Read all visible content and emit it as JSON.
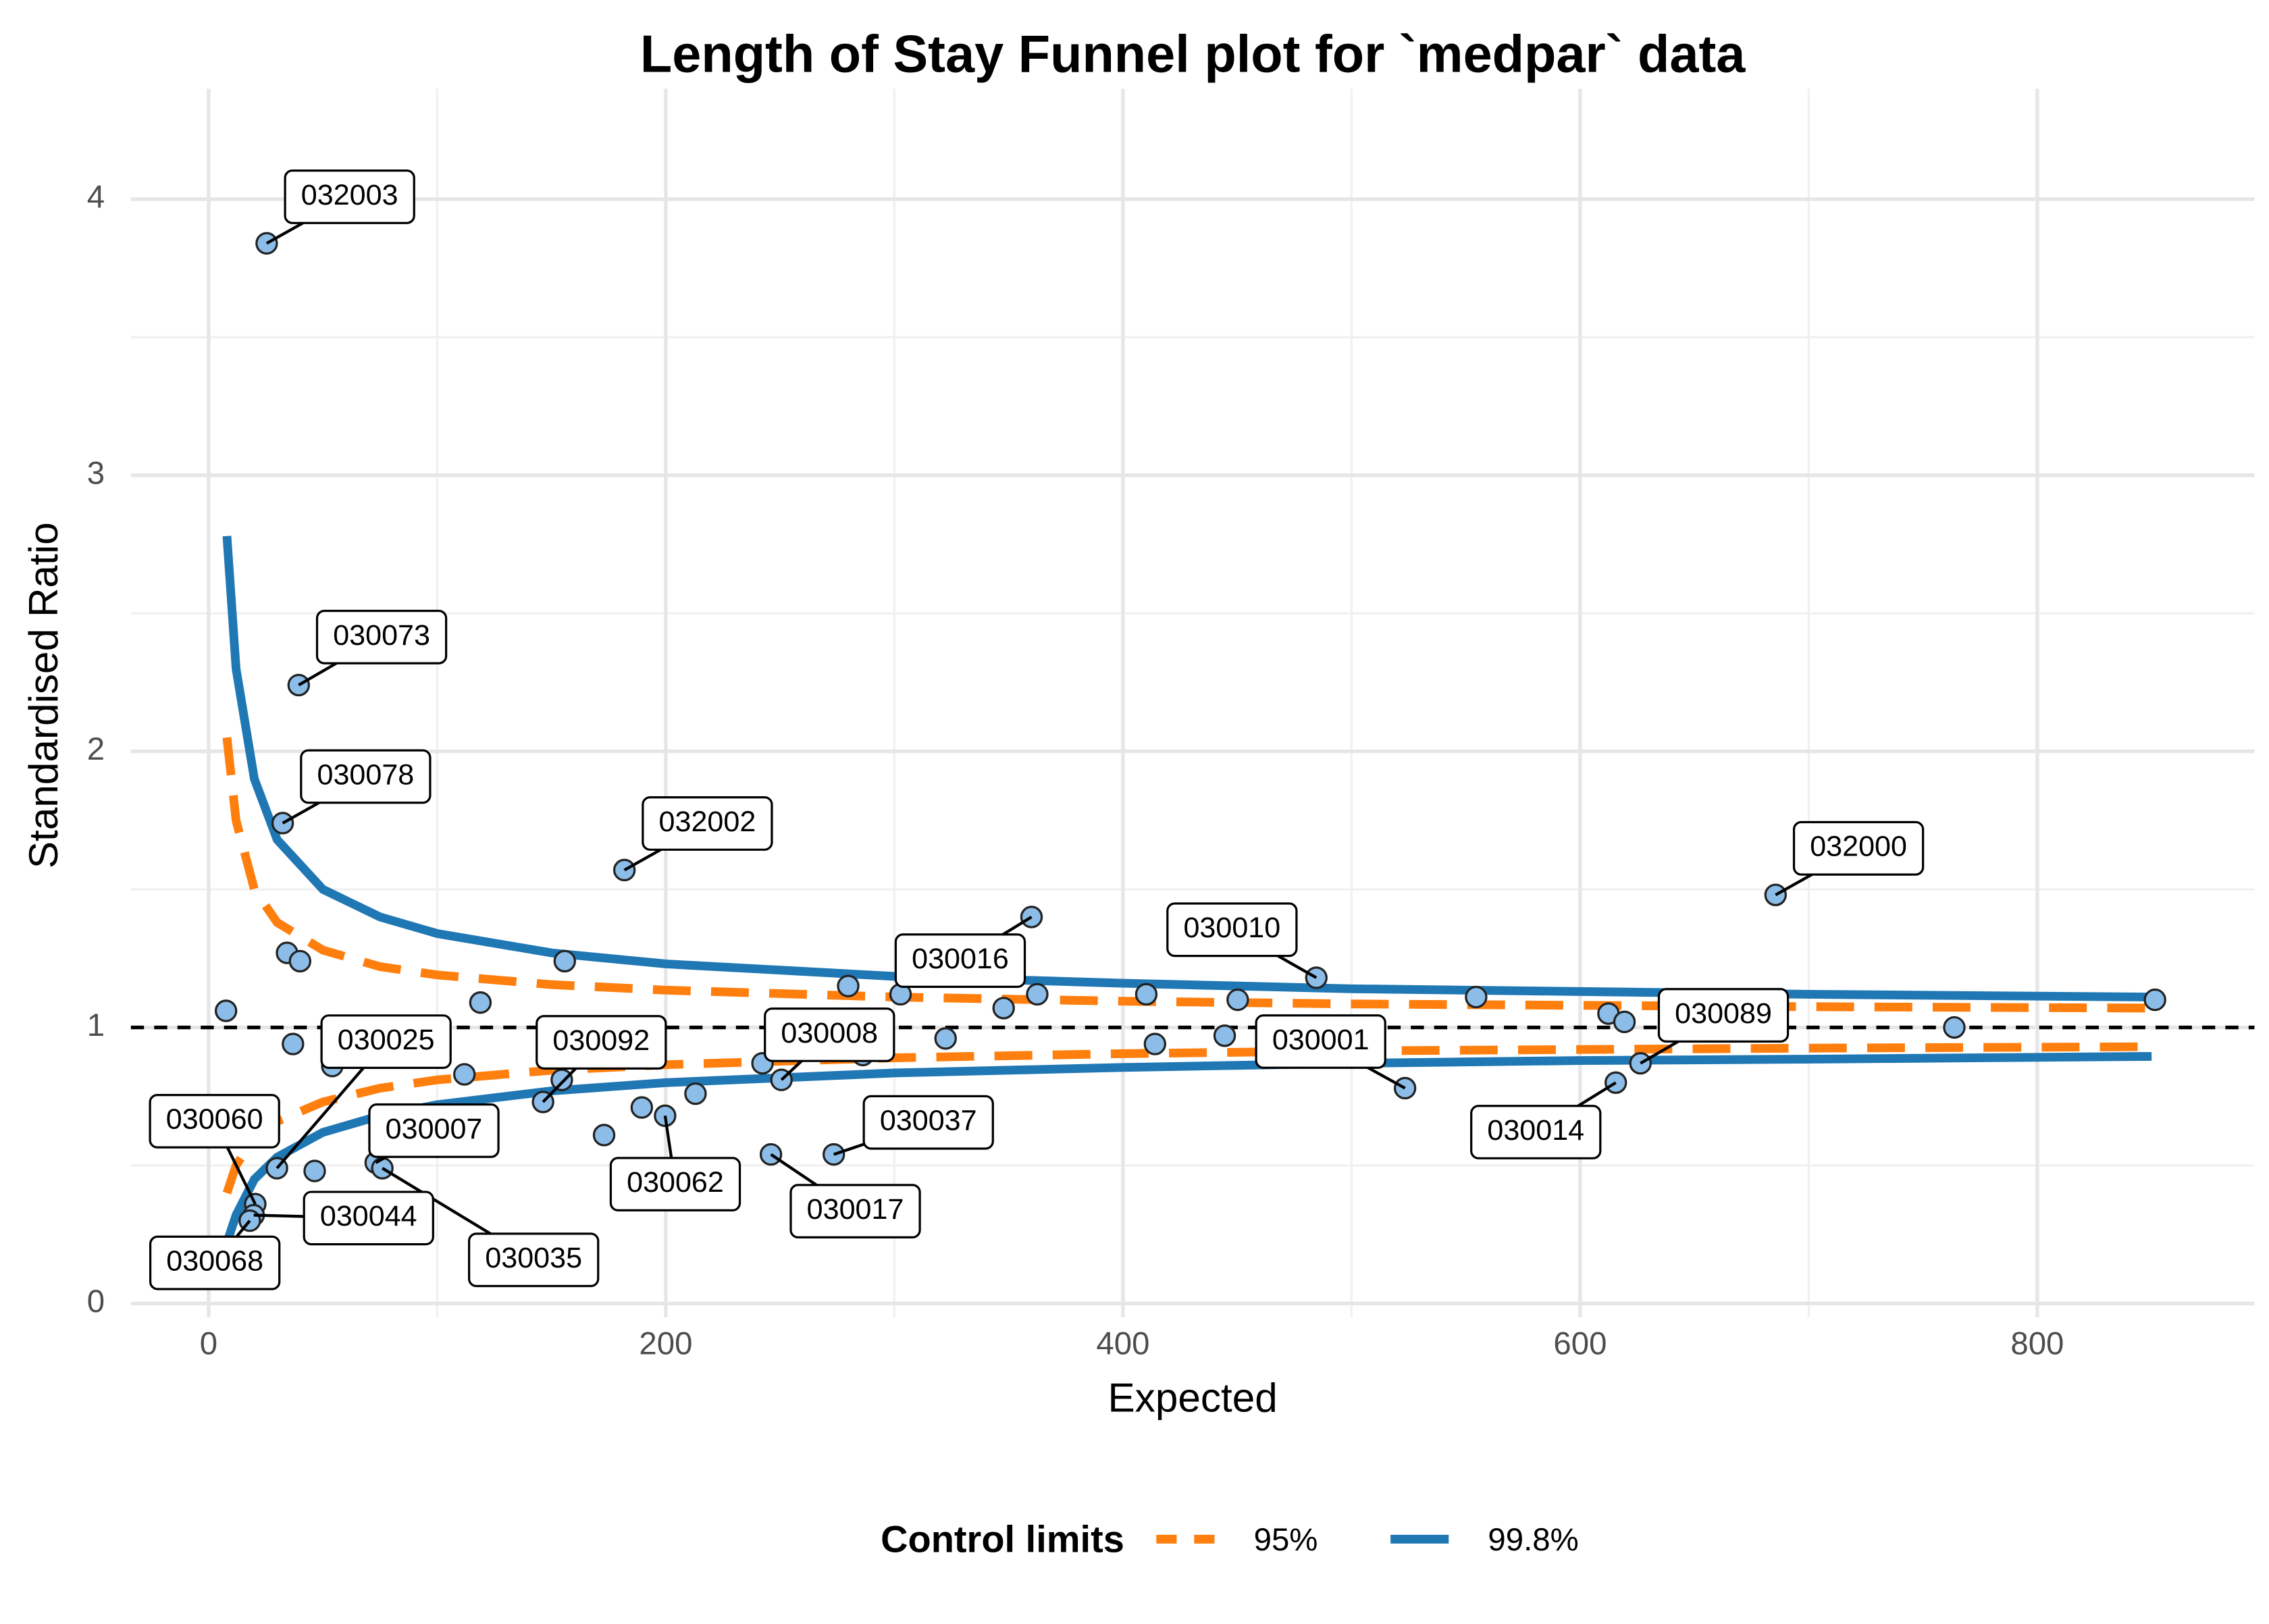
{
  "chart_data": {
    "type": "scatter",
    "title": "Length of Stay Funnel plot for `medpar` data",
    "x_label": "Expected",
    "y_label": "Standardised Ratio",
    "xlim": [
      -34,
      895
    ],
    "ylim": [
      -0.05,
      4.4
    ],
    "xticks": [
      0,
      200,
      400,
      600,
      800
    ],
    "yticks": [
      0,
      1,
      2,
      3,
      4
    ],
    "x_minor": [
      100,
      300,
      500,
      700
    ],
    "y_minor": [
      0.5,
      1.5,
      2.5,
      3.5
    ],
    "grid": true,
    "reference_line": 1,
    "legend_title": "Control limits",
    "legend_position": "bottom",
    "points": {
      "color": "#8bbde8",
      "x": [
        25.4,
        39.4,
        32.4,
        181.9,
        685.5,
        360,
        484.6,
        523.4,
        626.4,
        615.6,
        146.3,
        250.6,
        199.7,
        246,
        273.5,
        73.1,
        76,
        29.9,
        20.4,
        19.7,
        18,
        34.3,
        40,
        155.8,
        7.6,
        118.9,
        279.8,
        302.7,
        347.8,
        362.5,
        410.2,
        450.2,
        554.5,
        612.4,
        619.4,
        851.5,
        763.7,
        36.9,
        54.1,
        322.4,
        414,
        444.5,
        242.3,
        286.2,
        111.9,
        154.5,
        213,
        189.5,
        173,
        46.4
      ],
      "y": [
        3.84,
        2.24,
        1.74,
        1.57,
        1.48,
        1.4,
        1.18,
        0.78,
        0.87,
        0.8,
        0.73,
        0.81,
        0.68,
        0.54,
        0.54,
        0.51,
        0.49,
        0.49,
        0.36,
        0.32,
        0.3,
        1.27,
        1.24,
        1.24,
        1.06,
        1.09,
        1.15,
        1.12,
        1.07,
        1.12,
        1.12,
        1.1,
        1.11,
        1.05,
        1.02,
        1.1,
        1.0,
        0.94,
        0.86,
        0.96,
        0.94,
        0.97,
        0.87,
        0.9,
        0.83,
        0.81,
        0.76,
        0.71,
        0.61,
        0.48
      ],
      "labels": [
        "032003",
        "030073",
        "030078",
        "032002",
        "032000",
        "030016",
        "030010",
        "030001",
        "030089",
        "030014",
        "030092",
        "030008",
        "030062",
        "030017",
        "030037",
        "030007",
        "030035",
        "030025",
        "030060",
        "030044",
        "030068",
        null,
        null,
        null,
        null,
        null,
        null,
        null,
        null,
        null,
        null,
        null,
        null,
        null,
        null,
        null,
        null,
        null,
        null,
        null,
        null,
        null,
        null,
        null,
        null,
        null,
        null,
        null,
        null,
        null
      ]
    },
    "series": [
      {
        "name": "95%",
        "color": "#ff7f0e",
        "dashed": true,
        "x": [
          8,
          12,
          20,
          30,
          50,
          75,
          100,
          150,
          200,
          300,
          400,
          500,
          600,
          700,
          850
        ],
        "upper": [
          2.05,
          1.75,
          1.5,
          1.38,
          1.28,
          1.22,
          1.19,
          1.155,
          1.135,
          1.11,
          1.095,
          1.085,
          1.08,
          1.075,
          1.07
        ],
        "lower": [
          0.4,
          0.5,
          0.6,
          0.66,
          0.73,
          0.78,
          0.81,
          0.845,
          0.865,
          0.89,
          0.905,
          0.915,
          0.92,
          0.925,
          0.93
        ]
      },
      {
        "name": "99.8%",
        "color": "#1f77b4",
        "dashed": false,
        "x": [
          8,
          12,
          20,
          30,
          50,
          75,
          100,
          150,
          200,
          300,
          400,
          500,
          600,
          700,
          850
        ],
        "upper": [
          2.78,
          2.3,
          1.9,
          1.68,
          1.5,
          1.4,
          1.34,
          1.27,
          1.23,
          1.185,
          1.16,
          1.14,
          1.13,
          1.12,
          1.11
        ],
        "lower": [
          0.22,
          0.32,
          0.45,
          0.53,
          0.62,
          0.68,
          0.72,
          0.77,
          0.8,
          0.835,
          0.855,
          0.87,
          0.88,
          0.885,
          0.895
        ]
      }
    ]
  }
}
